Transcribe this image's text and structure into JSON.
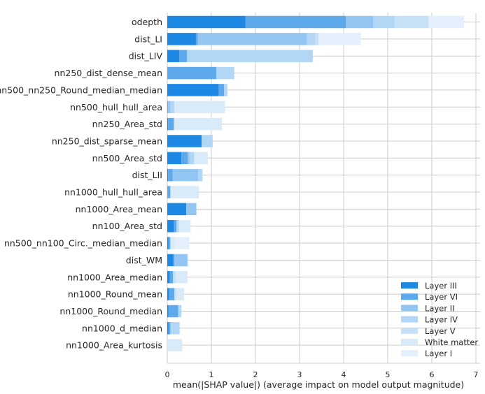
{
  "chart_data": {
    "type": "bar",
    "orientation": "horizontal",
    "stacked": true,
    "xlabel": "mean(|SHAP value|) (average impact on model output magnitude)",
    "xlim": [
      0,
      7
    ],
    "xticks": [
      0,
      1,
      2,
      3,
      4,
      5,
      6,
      7
    ],
    "grid": true,
    "legend_position": "bottom-right",
    "categories": [
      "odepth",
      "dist_LI",
      "dist_LIV",
      "nn250_dist_dense_mean",
      "nn500_nn250_Round_median_median",
      "nn500_hull_hull_area",
      "nn250_Area_std",
      "nn250_dist_sparse_mean",
      "nn500_Area_std",
      "dist_LII",
      "nn1000_hull_hull_area",
      "nn1000_Area_mean",
      "nn100_Area_std",
      "nn500_nn100_Circ._median_median",
      "dist_WM",
      "nn1000_Area_median",
      "nn1000_Round_mean",
      "nn1000_Round_median",
      "nn1000_d_median",
      "nn1000_Area_kurtosis"
    ],
    "series": [
      {
        "name": "Layer III",
        "color": "#1e88e5",
        "values": [
          1.77,
          0.65,
          0.27,
          0.0,
          1.17,
          0.0,
          0.02,
          0.78,
          0.32,
          0.02,
          0.0,
          0.43,
          0.15,
          0.03,
          0.14,
          0.06,
          0.04,
          0.03,
          0.03,
          0.0
        ]
      },
      {
        "name": "Layer VI",
        "color": "#5ea9ec",
        "values": [
          2.28,
          0.04,
          0.18,
          1.11,
          0.12,
          0.02,
          0.13,
          0.0,
          0.14,
          0.1,
          0.07,
          0.0,
          0.06,
          0.04,
          0.02,
          0.07,
          0.12,
          0.22,
          0.04,
          0.0
        ]
      },
      {
        "name": "Layer II",
        "color": "#92c5f2",
        "values": [
          0.62,
          2.48,
          0.0,
          0.0,
          0.0,
          0.05,
          0.0,
          0.0,
          0.04,
          0.58,
          0.0,
          0.23,
          0.0,
          0.0,
          0.29,
          0.0,
          0.0,
          0.0,
          0.0,
          0.0
        ]
      },
      {
        "name": "Layer IV",
        "color": "#b1d6f6",
        "values": [
          0.48,
          0.18,
          2.85,
          0.41,
          0.06,
          0.09,
          0.0,
          0.25,
          0.11,
          0.1,
          0.0,
          0.0,
          0.05,
          0.0,
          0.02,
          0.0,
          0.0,
          0.07,
          0.21,
          0.0
        ]
      },
      {
        "name": "Layer V",
        "color": "#c6e0f8",
        "values": [
          0.78,
          0.08,
          0.0,
          0.0,
          0.02,
          0.0,
          0.0,
          0.0,
          0.0,
          0.0,
          0.0,
          0.0,
          0.0,
          0.0,
          0.0,
          0.06,
          0.05,
          0.0,
          0.0,
          0.0
        ]
      },
      {
        "name": "White matter",
        "color": "#d9eaf9",
        "values": [
          0.0,
          0.0,
          0.0,
          0.0,
          0.0,
          1.15,
          1.09,
          0.0,
          0.31,
          0.0,
          0.65,
          0.0,
          0.27,
          0.1,
          0.0,
          0.27,
          0.17,
          0.0,
          0.0,
          0.34
        ]
      },
      {
        "name": "Layer I",
        "color": "#e4f0fb",
        "values": [
          0.8,
          0.96,
          0.0,
          0.0,
          0.0,
          0.0,
          0.0,
          0.0,
          0.0,
          0.0,
          0.0,
          0.0,
          0.0,
          0.33,
          0.0,
          0.0,
          0.0,
          0.0,
          0.0,
          0.0
        ]
      }
    ]
  }
}
